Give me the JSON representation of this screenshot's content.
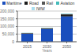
{
  "chart_data": {
    "type": "bar",
    "stacked": true,
    "categories": [
      "2015",
      "2030",
      "2050"
    ],
    "series": [
      {
        "name": "Maritime",
        "color": "#1a4fbd",
        "values": [
          53000,
          82000,
          165000
        ]
      },
      {
        "name": "Road",
        "color": "#1a1a1a",
        "values": [
          2500,
          4500,
          9000
        ]
      },
      {
        "name": "Rail",
        "color": "#555555",
        "values": [
          1200,
          2200,
          5000
        ]
      },
      {
        "name": "Aviation",
        "color": "#44bbbb",
        "values": [
          600,
          1200,
          3500
        ]
      },
      {
        "name": "IWW",
        "color": "#aaddee",
        "values": [
          400,
          800,
          2000
        ]
      }
    ],
    "xlabel": "Years",
    "ylim": [
      0,
      200000
    ],
    "yticks": [
      0,
      {
        "value": 50000,
        "label": "50,000"
      },
      {
        "value": 100000,
        "label": "100,000"
      },
      {
        "value": 150000,
        "label": "150,000"
      },
      {
        "value": 200000,
        "label": "200,000"
      }
    ],
    "grid": true,
    "legend": "top"
  }
}
